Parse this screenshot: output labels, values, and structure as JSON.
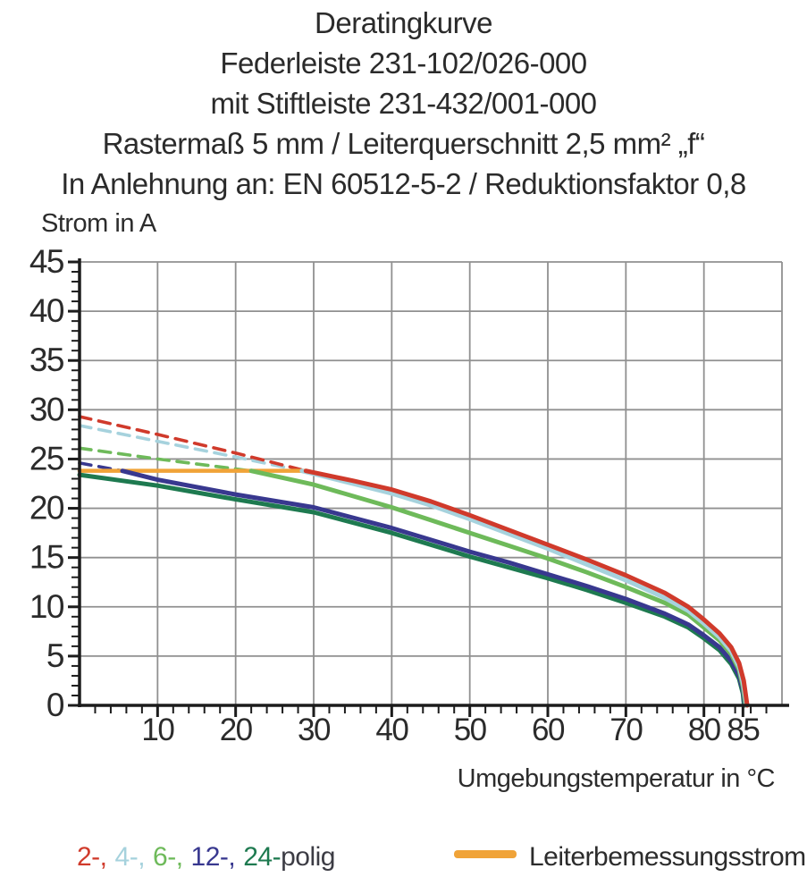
{
  "header": {
    "lines": [
      "Deratingkurve",
      "Federleiste 231-102/026-000",
      "mit Stiftleiste 231-432/001-000",
      "Rastermaß 5 mm / Leiterquerschnitt 2,5 mm² „f“",
      "In Anlehnung an: EN 60512-5-2 / Reduktionsfaktor 0,8"
    ]
  },
  "chart_data": {
    "type": "line",
    "title": "Deratingkurve",
    "xlabel": "Umgebungstemperatur in °C",
    "ylabel": "Strom in A",
    "xlim": [
      0,
      90
    ],
    "ylim": [
      0,
      45
    ],
    "grid": true,
    "x_gridlines": [
      10,
      20,
      30,
      40,
      50,
      60,
      70,
      80,
      90
    ],
    "y_gridlines": [
      5,
      10,
      15,
      20,
      25,
      30,
      35,
      40,
      45
    ],
    "x_major_ticks": [
      10,
      20,
      30,
      40,
      50,
      60,
      70,
      80,
      85
    ],
    "x_tick_labels": [
      "10",
      "20",
      "30",
      "40",
      "50",
      "60",
      "70",
      "80",
      "85"
    ],
    "x_minor_step": 2,
    "y_major_ticks": [
      0,
      5,
      10,
      15,
      20,
      25,
      30,
      35,
      40,
      45
    ],
    "y_tick_labels": [
      "0",
      "5",
      "10",
      "15",
      "20",
      "25",
      "30",
      "35",
      "40",
      "45"
    ],
    "y_minor_step": 1,
    "grid_color": "#909090",
    "axis_color": "#1c1c1c",
    "reference_line": {
      "name": "Leiterbemessungsstrom",
      "color": "#f0a338",
      "value": 23.8,
      "x_range": [
        0,
        29
      ]
    },
    "series": [
      {
        "name": "2-polig",
        "color": "#d03a2b",
        "dashed_points": [
          [
            0,
            29.3
          ],
          [
            10,
            27.5
          ],
          [
            20,
            25.6
          ],
          [
            29,
            23.8
          ]
        ],
        "solid_points": [
          [
            29,
            23.8
          ],
          [
            35,
            22.8
          ],
          [
            40,
            21.9
          ],
          [
            45,
            20.7
          ],
          [
            50,
            19.3
          ],
          [
            55,
            17.8
          ],
          [
            60,
            16.3
          ],
          [
            65,
            14.8
          ],
          [
            70,
            13.2
          ],
          [
            75,
            11.4
          ],
          [
            78,
            10.0
          ],
          [
            80,
            8.7
          ],
          [
            82,
            7.3
          ],
          [
            83.5,
            5.9
          ],
          [
            84.5,
            4.3
          ],
          [
            85.1,
            2.5
          ],
          [
            85.55,
            0
          ]
        ]
      },
      {
        "name": "4-polig",
        "color": "#a6d2dd",
        "dashed_points": [
          [
            0,
            28.4
          ],
          [
            10,
            26.8
          ],
          [
            20,
            25.2
          ],
          [
            28.5,
            23.8
          ]
        ],
        "solid_points": [
          [
            28.5,
            23.8
          ],
          [
            35,
            22.5
          ],
          [
            40,
            21.5
          ],
          [
            45,
            20.3
          ],
          [
            50,
            18.9
          ],
          [
            55,
            17.4
          ],
          [
            60,
            15.9
          ],
          [
            65,
            14.3
          ],
          [
            70,
            12.7
          ],
          [
            75,
            10.9
          ],
          [
            78,
            9.6
          ],
          [
            80,
            8.3
          ],
          [
            82,
            6.9
          ],
          [
            83.5,
            5.5
          ],
          [
            84.5,
            3.9
          ],
          [
            85,
            2.3
          ],
          [
            85.45,
            0
          ]
        ]
      },
      {
        "name": "6-polig",
        "color": "#6eba5a",
        "dashed_points": [
          [
            0,
            26.1
          ],
          [
            10,
            25.0
          ],
          [
            20,
            24.0
          ],
          [
            22,
            23.8
          ]
        ],
        "solid_points": [
          [
            22,
            23.8
          ],
          [
            30,
            22.4
          ],
          [
            40,
            20.1
          ],
          [
            45,
            18.8
          ],
          [
            50,
            17.5
          ],
          [
            55,
            16.2
          ],
          [
            60,
            14.9
          ],
          [
            65,
            13.5
          ],
          [
            70,
            12.0
          ],
          [
            75,
            10.4
          ],
          [
            78,
            9.2
          ],
          [
            80,
            7.9
          ],
          [
            82,
            6.6
          ],
          [
            83.5,
            5.2
          ],
          [
            84.5,
            3.6
          ],
          [
            85,
            1.9
          ],
          [
            85.35,
            0
          ]
        ]
      },
      {
        "name": "12-polig",
        "color": "#38388f",
        "dashed_points": [
          [
            0,
            24.6
          ],
          [
            5.5,
            23.8
          ]
        ],
        "solid_points": [
          [
            5.5,
            23.8
          ],
          [
            10,
            22.9
          ],
          [
            20,
            21.4
          ],
          [
            30,
            20.1
          ],
          [
            40,
            18.0
          ],
          [
            50,
            15.6
          ],
          [
            55,
            14.5
          ],
          [
            60,
            13.3
          ],
          [
            65,
            12.1
          ],
          [
            70,
            10.8
          ],
          [
            75,
            9.3
          ],
          [
            78,
            8.2
          ],
          [
            80,
            7.1
          ],
          [
            82,
            5.9
          ],
          [
            83.5,
            4.5
          ],
          [
            84.5,
            3.0
          ],
          [
            85,
            1.5
          ],
          [
            85.25,
            0
          ]
        ]
      },
      {
        "name": "24-polig",
        "color": "#1e7a50",
        "dashed_points": [],
        "solid_points": [
          [
            0,
            23.4
          ],
          [
            10,
            22.3
          ],
          [
            20,
            20.9
          ],
          [
            30,
            19.6
          ],
          [
            40,
            17.5
          ],
          [
            50,
            15.1
          ],
          [
            55,
            14.0
          ],
          [
            60,
            12.9
          ],
          [
            65,
            11.7
          ],
          [
            70,
            10.4
          ],
          [
            75,
            9.0
          ],
          [
            78,
            7.9
          ],
          [
            80,
            6.8
          ],
          [
            82,
            5.6
          ],
          [
            83.5,
            4.2
          ],
          [
            84.5,
            2.7
          ],
          [
            85,
            1.2
          ],
          [
            85.15,
            0
          ]
        ]
      }
    ]
  },
  "legend": {
    "poles": [
      {
        "label": "2-,",
        "color": "#d03a2b"
      },
      {
        "label": "4-,",
        "color": "#a6d2dd"
      },
      {
        "label": "6-,",
        "color": "#6eba5a"
      },
      {
        "label": "12-,",
        "color": "#38388f"
      },
      {
        "label": "24-",
        "color": "#1e7a50"
      },
      {
        "label": "polig",
        "color": "#3c3c44"
      }
    ],
    "reference": {
      "label": "Leiterbemessungsstrom",
      "color": "#f0a338"
    }
  }
}
